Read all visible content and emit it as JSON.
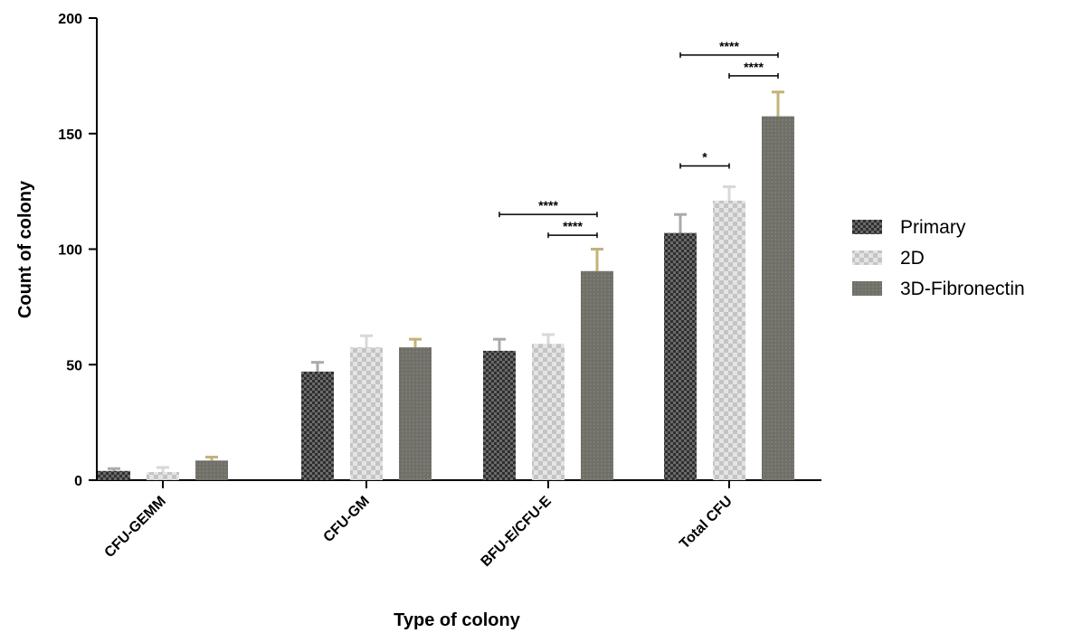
{
  "chart_data": {
    "type": "bar",
    "title": "",
    "xlabel": "Type of colony",
    "ylabel": "Count of colony",
    "ylim": [
      0,
      200
    ],
    "yticks": [
      0,
      50,
      100,
      150,
      200
    ],
    "categories": [
      "CFU-GEMM",
      "CFU-GM",
      "BFU-E/CFU-E",
      "Total CFU"
    ],
    "series": [
      {
        "name": "Primary",
        "values": [
          4,
          47,
          56,
          107
        ],
        "errors": [
          1,
          4,
          5,
          8
        ],
        "color": "#3d3d3d",
        "errorColor": "#aaaaaa"
      },
      {
        "name": "2D",
        "values": [
          3.5,
          57.5,
          59,
          121
        ],
        "errors": [
          2,
          5,
          4,
          6
        ],
        "color": "#c8c8c8",
        "errorColor": "#d8d8d8"
      },
      {
        "name": "3D-Fibronectin",
        "values": [
          8.5,
          57.5,
          90.5,
          157.5
        ],
        "errors": [
          1.5,
          3.5,
          9.5,
          10.5
        ],
        "color": "#6f6f67",
        "errorColor": "#c2b37a"
      }
    ],
    "legend": {
      "position": "right"
    },
    "grid": false,
    "annotations": [
      {
        "label": "****",
        "category": "BFU-E/CFU-E",
        "from": "Primary",
        "to": "3D-Fibronectin",
        "y": 115
      },
      {
        "label": "****",
        "category": "BFU-E/CFU-E",
        "from": "2D",
        "to": "3D-Fibronectin",
        "y": 106
      },
      {
        "label": "*",
        "category": "Total CFU",
        "from": "Primary",
        "to": "2D",
        "y": 136
      },
      {
        "label": "****",
        "category": "Total CFU",
        "from": "Primary",
        "to": "3D-Fibronectin",
        "y": 184
      },
      {
        "label": "****",
        "category": "Total CFU",
        "from": "2D",
        "to": "3D-Fibronectin",
        "y": 175
      }
    ]
  }
}
